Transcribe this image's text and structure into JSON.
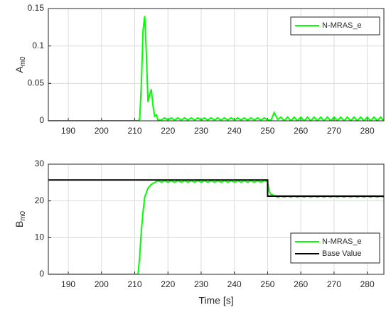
{
  "chart_data": [
    {
      "type": "line",
      "ylabel": [
        "A",
        "m0"
      ],
      "xlim": [
        184,
        285
      ],
      "xticks": [
        190,
        200,
        210,
        220,
        230,
        240,
        250,
        260,
        270,
        280
      ],
      "ylim": [
        0,
        0.15
      ],
      "yticks": [
        0,
        0.05,
        0.1,
        0.15
      ],
      "grid": true,
      "legend": "northeast",
      "series": [
        {
          "name": "N-MRAS_e",
          "color": "#00ff00",
          "x": [
            184,
            211,
            211.5,
            212,
            212.5,
            213,
            213.5,
            214,
            214.5,
            215,
            215.5,
            216,
            216.5,
            217,
            218,
            219,
            220,
            221,
            222,
            223,
            224,
            225,
            226,
            227,
            228,
            229,
            230,
            231,
            232,
            233,
            234,
            235,
            236,
            237,
            238,
            239,
            240,
            241,
            242,
            243,
            244,
            245,
            246,
            247,
            248,
            249,
            250,
            251,
            252,
            253,
            254,
            255,
            256,
            257,
            258,
            259,
            260,
            261,
            262,
            263,
            264,
            265,
            266,
            267,
            268,
            269,
            270,
            271,
            272,
            273,
            274,
            275,
            276,
            277,
            278,
            279,
            280,
            281,
            282,
            283,
            284,
            285
          ],
          "values": [
            0,
            0,
            0.002,
            0.05,
            0.12,
            0.14,
            0.09,
            0.025,
            0.035,
            0.042,
            0.02,
            0.006,
            0.008,
            0.001,
            0.001,
            0.004,
            0.001,
            0.004,
            0.001,
            0.004,
            0.001,
            0.004,
            0.001,
            0.004,
            0.001,
            0.004,
            0.001,
            0.004,
            0.001,
            0.004,
            0.001,
            0.004,
            0.001,
            0.004,
            0.001,
            0.004,
            0.001,
            0.004,
            0.001,
            0.004,
            0.001,
            0.004,
            0.001,
            0.004,
            0.001,
            0.004,
            0.001,
            0.001,
            0.011,
            0.002,
            0.005,
            0,
            0.005,
            0,
            0.005,
            0,
            0.005,
            0,
            0.005,
            0,
            0.005,
            0,
            0.005,
            0,
            0.005,
            0,
            0.005,
            0,
            0.005,
            0,
            0.005,
            0,
            0.005,
            0,
            0.005,
            0,
            0.005,
            0,
            0.005,
            0,
            0.005,
            0
          ]
        }
      ]
    },
    {
      "type": "line",
      "ylabel": [
        "B",
        "m0"
      ],
      "xlabel": "Time [s]",
      "xlim": [
        184,
        285
      ],
      "xticks": [
        190,
        200,
        210,
        220,
        230,
        240,
        250,
        260,
        270,
        280
      ],
      "ylim": [
        0,
        30
      ],
      "yticks": [
        0,
        10,
        20,
        30
      ],
      "grid": true,
      "legend": "southeast",
      "series": [
        {
          "name": "N-MRAS_e",
          "color": "#00ff00",
          "x": [
            184,
            211,
            211.5,
            212,
            212.5,
            213,
            214,
            215,
            216,
            217,
            218,
            219,
            220,
            221,
            222,
            223,
            224,
            225,
            226,
            227,
            228,
            229,
            230,
            231,
            232,
            233,
            234,
            235,
            236,
            237,
            238,
            239,
            240,
            241,
            242,
            243,
            244,
            245,
            246,
            247,
            248,
            249,
            250,
            250.5,
            251,
            252,
            253,
            254,
            255,
            256,
            257,
            258,
            259,
            260,
            261,
            262,
            263,
            264,
            265,
            266,
            267,
            268,
            269,
            270,
            271,
            272,
            273,
            274,
            275,
            276,
            277,
            278,
            279,
            280,
            281,
            282,
            283,
            284,
            285
          ],
          "values": [
            0,
            0,
            5,
            12,
            17,
            21,
            23.5,
            24.5,
            25,
            25.5,
            25.1,
            25.5,
            25.1,
            25.5,
            25.1,
            25.5,
            25.1,
            25.5,
            25.1,
            25.5,
            25.1,
            25.5,
            25.1,
            25.5,
            25.1,
            25.5,
            25.1,
            25.5,
            25.1,
            25.5,
            25.1,
            25.5,
            25.1,
            25.5,
            25.1,
            25.5,
            25.1,
            25.5,
            25.1,
            25.5,
            25.1,
            25.5,
            25.3,
            22.5,
            21.8,
            21.5,
            21.0,
            21.3,
            21.0,
            21.3,
            21.0,
            21.3,
            21.0,
            21.3,
            21.0,
            21.3,
            21.0,
            21.3,
            21.0,
            21.3,
            21.0,
            21.3,
            21.0,
            21.3,
            21.0,
            21.3,
            21.0,
            21.3,
            21.0,
            21.3,
            21.0,
            21.3,
            21.0,
            21.3,
            21.0,
            21.3,
            21.0,
            21.3,
            21.0
          ]
        },
        {
          "name": "Base Value",
          "color": "#000000",
          "x": [
            184,
            250,
            250,
            285
          ],
          "values": [
            25.7,
            25.7,
            21.3,
            21.3
          ]
        }
      ]
    }
  ]
}
